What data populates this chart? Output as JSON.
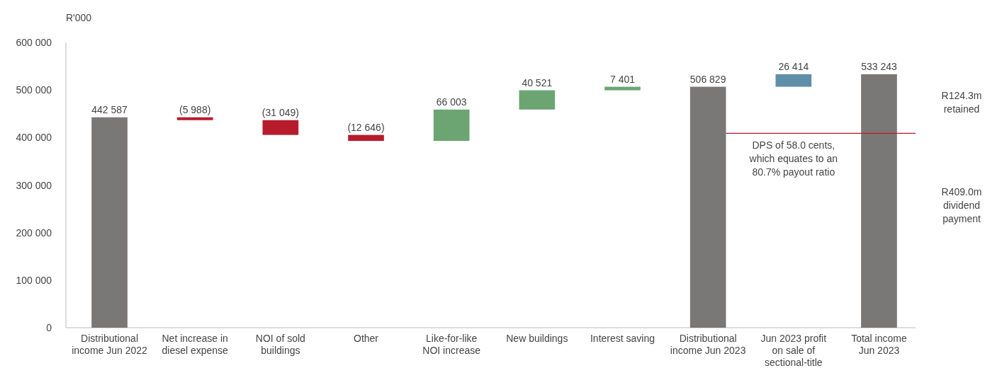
{
  "chart_data": {
    "type": "bar",
    "ylabel": "R'000",
    "categories": [
      "Distributional income Jun 2022",
      "Net increase in diesel expense",
      "NOI of sold buildings",
      "Other",
      "Like-for-like NOI increase",
      "New buildings",
      "Interest saving",
      "Distributional income Jun 2023",
      "Jun 2023 profit on sale of sectional-title",
      "Total income Jun 2023"
    ],
    "values": [
      442587,
      -5988,
      -31049,
      -12646,
      66003,
      40521,
      7401,
      506829,
      26414,
      533243
    ],
    "base": [
      0,
      442587,
      436599,
      405550,
      392904,
      458907,
      499428,
      0,
      506829,
      0
    ],
    "colors": [
      "#7a7777",
      "#b71c2c",
      "#b71c2c",
      "#b71c2c",
      "#6ca572",
      "#6ca572",
      "#6ca572",
      "#7a7777",
      "#5f8fa8",
      "#7a7777"
    ],
    "value_labels": [
      "442 587",
      "(5 988)",
      "(31 049)",
      "(12 646)",
      "66 003",
      "40 521",
      "7 401",
      "506 829",
      "26 414",
      "533 243"
    ],
    "ylim": [
      0,
      600000
    ],
    "yticks": [
      {
        "value": 0,
        "label": "0"
      },
      {
        "value": 100000,
        "label": "100 000"
      },
      {
        "value": 200000,
        "label": "200 000"
      },
      {
        "value": 300000,
        "label": "300 000"
      },
      {
        "value": 400000,
        "label": "400 000"
      },
      {
        "value": 500000,
        "label": "500 000"
      },
      {
        "value": 600000,
        "label": "600 000"
      }
    ],
    "grid": false,
    "ref_lines": [
      {
        "axis": "y",
        "value": 409000,
        "color": "#b71c2c"
      }
    ],
    "annotations": [
      "DPS of 58.0 cents, which equates to an 80.7% payout ratio",
      "R124.3m retained",
      "R409.0m dividend payment"
    ]
  }
}
